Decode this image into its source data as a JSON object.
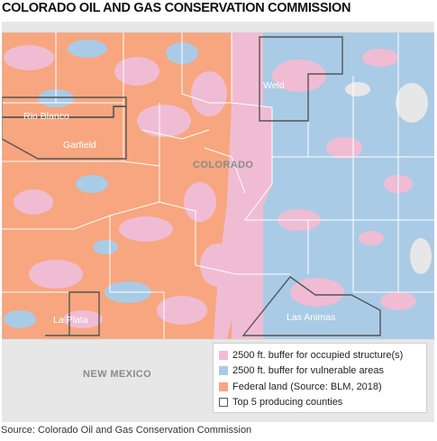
{
  "title": "COLORADO OIL AND GAS CONSERVATION COMMISSION",
  "map": {
    "state_label": "COLORADO",
    "neighbor_label": "NEW MEXICO",
    "counties": {
      "weld": "Weld",
      "rio_blanco": "Rio Blanco",
      "garfield": "Garfield",
      "la_plata": "La Plata",
      "las_animas": "Las Animas"
    },
    "colors": {
      "occupied_buffer": "#f0bcd3",
      "vulnerable_buffer": "#a9cbe6",
      "federal_land": "#f7a67f",
      "background": "#e7e7e7",
      "county_line": "#ffffff",
      "highlight_outline": "#555555"
    }
  },
  "legend": {
    "items": [
      {
        "label": "2500 ft. buffer for occupied structure(s)",
        "color": "#f0bcd3"
      },
      {
        "label": "2500 ft. buffer for vulnerable areas",
        "color": "#a9cbe6"
      },
      {
        "label": "Federal land (Source: BLM, 2018)",
        "color": "#f7a67f"
      },
      {
        "label": "Top 5 producing counties",
        "color": "#ffffff"
      }
    ]
  },
  "source": "Source: Colorado Oil and Gas Conservation Commission"
}
